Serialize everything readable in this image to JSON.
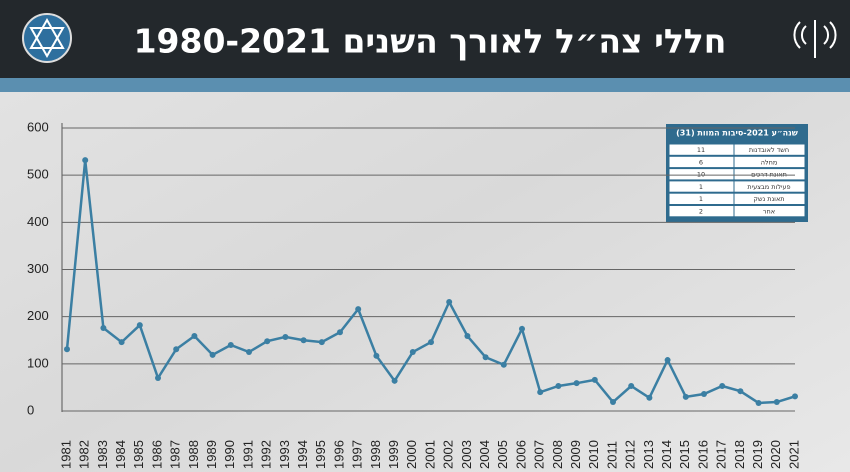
{
  "chart_data": {
    "type": "line",
    "title": "חללי צה״ל לאורך השנים 1980-2021",
    "categories": [
      "1981",
      "1982",
      "1983",
      "1984",
      "1985",
      "1986",
      "1987",
      "1988",
      "1989",
      "1990",
      "1991",
      "1992",
      "1993",
      "1994",
      "1995",
      "1996",
      "1997",
      "1998",
      "1999",
      "2000",
      "2001",
      "2002",
      "2003",
      "2004",
      "2005",
      "2006",
      "2007",
      "2008",
      "2009",
      "2010",
      "2011",
      "2012",
      "2013",
      "2014",
      "2015",
      "2016",
      "2017",
      "2018",
      "2019",
      "2020",
      "2021"
    ],
    "values": [
      131,
      532,
      176,
      146,
      182,
      70,
      131,
      159,
      119,
      140,
      125,
      148,
      157,
      150,
      146,
      167,
      216,
      117,
      64,
      125,
      146,
      231,
      159,
      114,
      98,
      174,
      40,
      53,
      59,
      66,
      19,
      53,
      28,
      108,
      30,
      36,
      53,
      42,
      17,
      19,
      31
    ],
    "color": "#3b7fa3",
    "ylim": [
      0,
      600
    ],
    "yticks": [
      0,
      100,
      200,
      300,
      400,
      500,
      600
    ],
    "grid": true,
    "table": {
      "title": "שנה״ע 2021-סיבות המוות (31)",
      "rows": [
        [
          "חשד לאובדנות",
          11
        ],
        [
          "מחלה",
          6
        ],
        [
          "תאונת דרכים",
          10
        ],
        [
          "פעילות מבצעית",
          1
        ],
        [
          "תאונת נשק",
          1
        ],
        [
          "אחר",
          2
        ]
      ]
    }
  }
}
